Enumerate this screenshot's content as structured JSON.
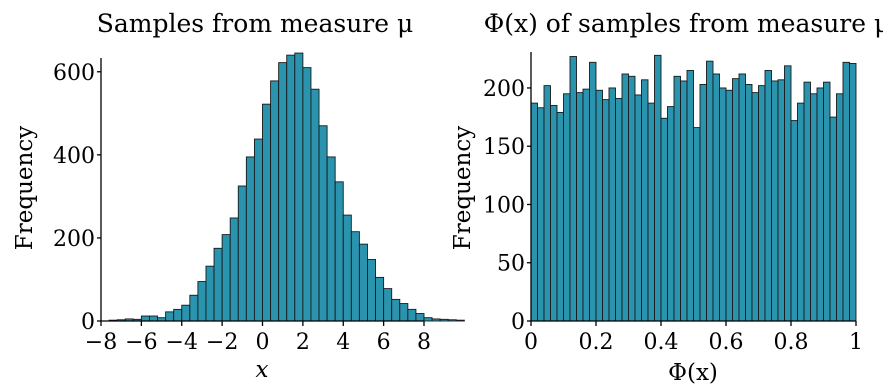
{
  "chart_data": [
    {
      "type": "bar",
      "title": "Samples from measure μ",
      "xlabel": "x",
      "ylabel": "Frequency",
      "xlim": [
        -8,
        8
      ],
      "ylim": [
        0,
        650
      ],
      "xticks": [
        "−8",
        "−6",
        "−4",
        "−2",
        "0",
        "2",
        "4",
        "6",
        "8"
      ],
      "yticks": [
        "0",
        "200",
        "400",
        "600"
      ],
      "bin_start": -7.6,
      "bin_width": 0.4,
      "values": [
        2,
        3,
        5,
        4,
        12,
        12,
        8,
        22,
        28,
        38,
        62,
        95,
        132,
        175,
        208,
        248,
        325,
        395,
        438,
        522,
        578,
        622,
        640,
        645,
        610,
        558,
        470,
        395,
        335,
        255,
        215,
        185,
        148,
        105,
        78,
        52,
        42,
        28,
        18,
        8,
        5,
        4,
        3,
        2
      ],
      "grid": false
    },
    {
      "type": "bar",
      "title": "Φ(x) of samples from measure μ",
      "xlabel": "Φ(x)",
      "ylabel": "Frequency",
      "xlim": [
        0,
        1
      ],
      "ylim": [
        0,
        230
      ],
      "xticks": [
        "0",
        "0.2",
        "0.4",
        "0.6",
        "0.8",
        "1"
      ],
      "yticks": [
        "0",
        "50",
        "100",
        "150",
        "200"
      ],
      "bin_start": 0,
      "bin_width": 0.02,
      "values": [
        187,
        183,
        202,
        185,
        179,
        195,
        227,
        196,
        199,
        222,
        198,
        190,
        200,
        191,
        212,
        210,
        194,
        207,
        187,
        228,
        174,
        184,
        210,
        206,
        215,
        166,
        203,
        223,
        212,
        200,
        198,
        208,
        212,
        203,
        196,
        202,
        215,
        206,
        207,
        219,
        172,
        187,
        205,
        195,
        200,
        205,
        175,
        195,
        222,
        221
      ],
      "grid": false
    }
  ]
}
